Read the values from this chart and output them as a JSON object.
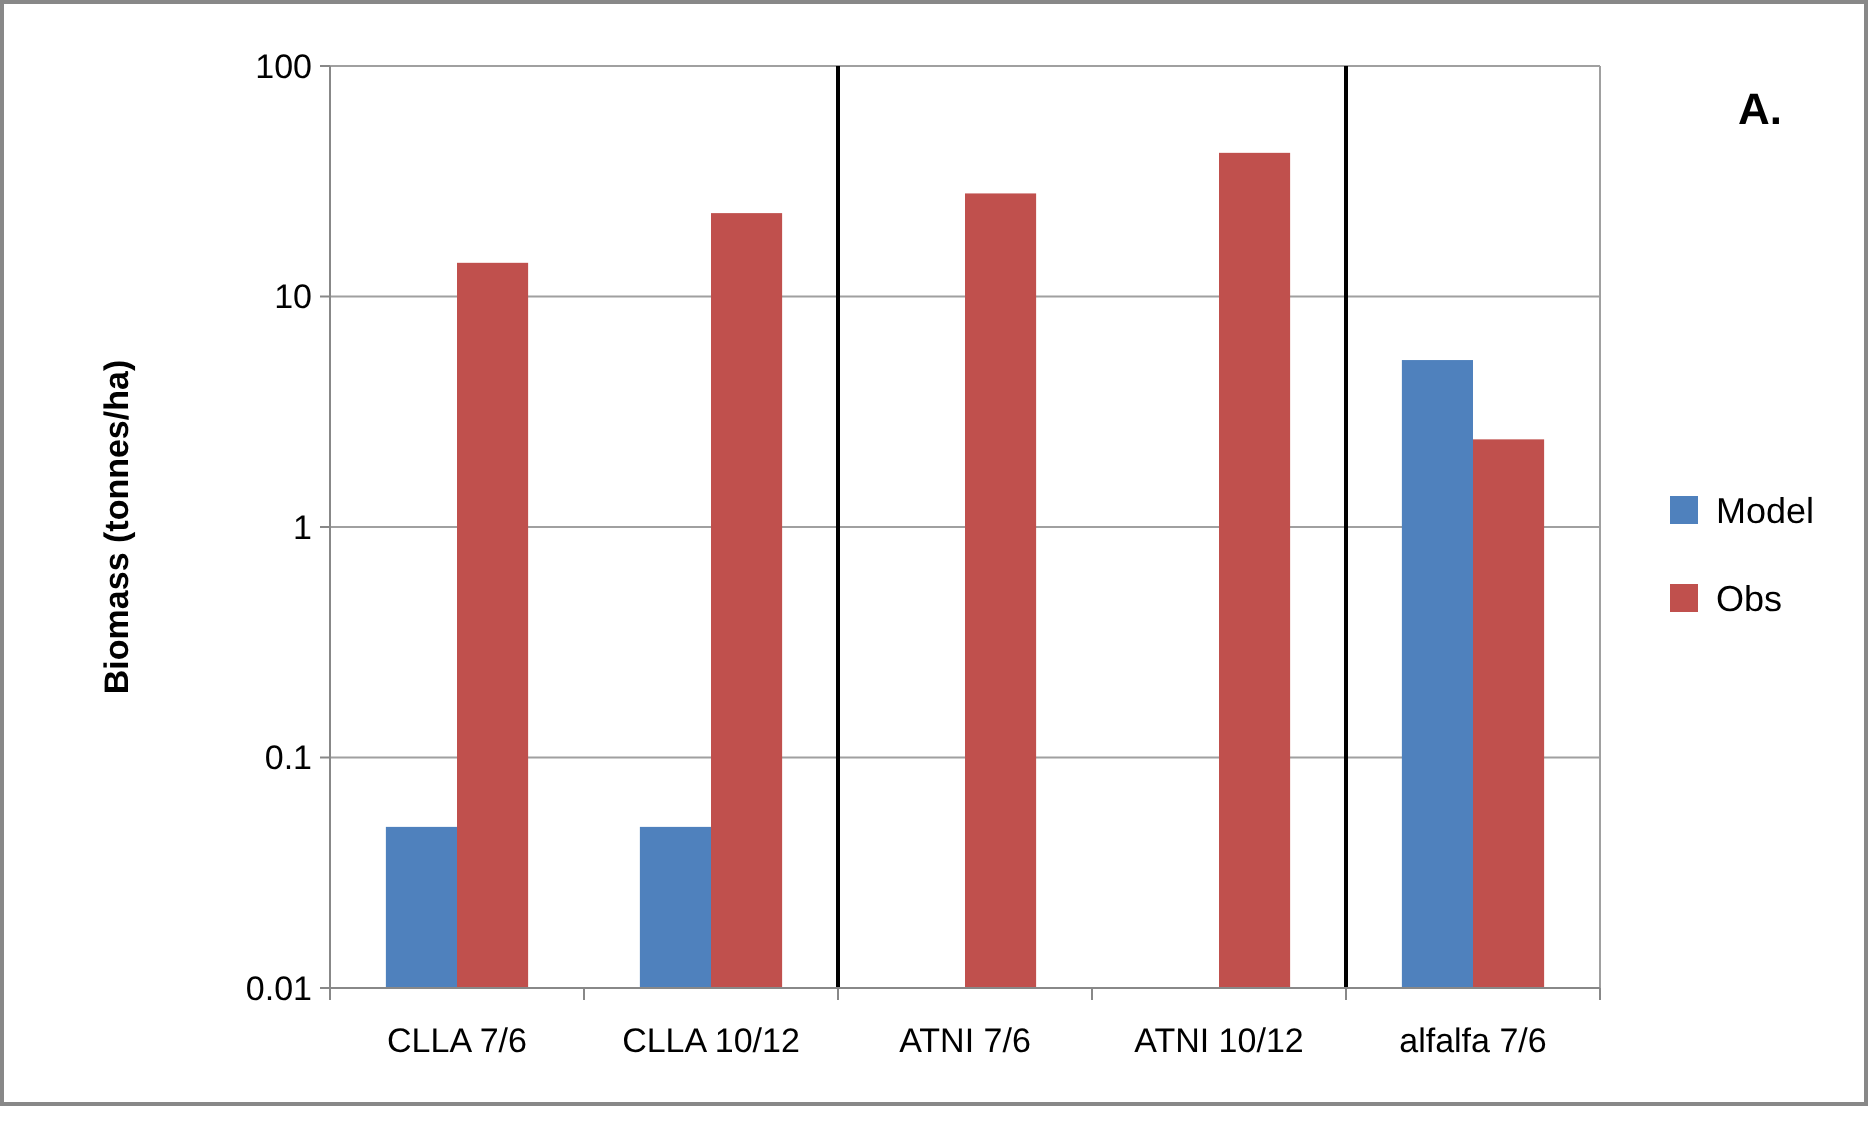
{
  "chart_data": {
    "type": "bar",
    "ylabel": "Biomass (tonnes/ha)",
    "categories": [
      "CLLA 7/6",
      "CLLA 10/12",
      "ATNI 7/6",
      "ATNI 10/12",
      "alfalfa 7/6"
    ],
    "series": [
      {
        "name": "Model",
        "color": "#4f81bd",
        "values": [
          0.05,
          0.05,
          null,
          null,
          5.3
        ]
      },
      {
        "name": "Obs",
        "color": "#c0504d",
        "values": [
          14,
          23,
          28,
          42,
          2.4
        ]
      }
    ],
    "log": true,
    "ylim": [
      0.01,
      100
    ],
    "yticks": [
      0.01,
      0.1,
      1,
      10,
      100
    ],
    "grid": "y",
    "legend": "right",
    "annotations": [
      "A."
    ]
  }
}
